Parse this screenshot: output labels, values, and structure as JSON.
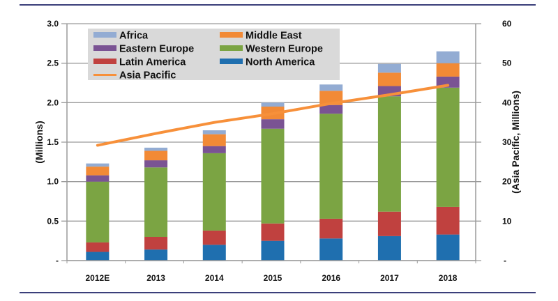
{
  "chart_data": {
    "type": "bar",
    "stacked": true,
    "title": "",
    "categories": [
      "2012E",
      "2013",
      "2014",
      "2015",
      "2016",
      "2017",
      "2018"
    ],
    "series": [
      {
        "name": "North America",
        "color": "#1f6faf",
        "axis": "left",
        "values": [
          0.11,
          0.14,
          0.2,
          0.25,
          0.28,
          0.31,
          0.33
        ]
      },
      {
        "name": "Latin America",
        "color": "#c0413f",
        "axis": "left",
        "values": [
          0.12,
          0.16,
          0.18,
          0.22,
          0.25,
          0.31,
          0.35
        ]
      },
      {
        "name": "Western Europe",
        "color": "#7ba443",
        "axis": "left",
        "values": [
          0.77,
          0.88,
          0.98,
          1.2,
          1.33,
          1.46,
          1.51
        ]
      },
      {
        "name": "Eastern Europe",
        "color": "#7a5393",
        "axis": "left",
        "values": [
          0.08,
          0.09,
          0.09,
          0.12,
          0.11,
          0.13,
          0.14
        ]
      },
      {
        "name": "Middle East",
        "color": "#f28a36",
        "axis": "left",
        "values": [
          0.11,
          0.12,
          0.15,
          0.16,
          0.18,
          0.17,
          0.17
        ]
      },
      {
        "name": "Africa",
        "color": "#93acd3",
        "axis": "left",
        "values": [
          0.04,
          0.04,
          0.05,
          0.05,
          0.08,
          0.11,
          0.15
        ]
      }
    ],
    "line_series": {
      "name": "Asia Pacific",
      "type": "line",
      "color": "#f7903a",
      "axis": "right",
      "values": [
        29.2,
        32.2,
        35.0,
        37.2,
        39.8,
        42.0,
        44.4
      ]
    },
    "xlabel": "",
    "ylabel": "(Millions)",
    "y2label": "(Asia Pacific, Millions)",
    "ylim": [
      0,
      3.0
    ],
    "y2lim": [
      0,
      60
    ],
    "yticks": [
      "-",
      "0.5",
      "1.0",
      "1.5",
      "2.0",
      "2.5",
      "3.0"
    ],
    "y2ticks": [
      "-",
      "10",
      "20",
      "30",
      "40",
      "50",
      "60"
    ],
    "grid": true,
    "legend": {
      "placement": "top-left inside",
      "entries": [
        {
          "name": "Africa",
          "color": "#93acd3",
          "kind": "bar"
        },
        {
          "name": "Middle East",
          "color": "#f28a36",
          "kind": "bar"
        },
        {
          "name": "Eastern Europe",
          "color": "#7a5393",
          "kind": "bar"
        },
        {
          "name": "Western Europe",
          "color": "#7ba443",
          "kind": "bar"
        },
        {
          "name": "Latin America",
          "color": "#c0413f",
          "kind": "bar"
        },
        {
          "name": "North America",
          "color": "#1f6faf",
          "kind": "bar"
        },
        {
          "name": "Asia Pacific",
          "color": "#f7903a",
          "kind": "line"
        }
      ]
    }
  },
  "colors": {
    "rule": "#3b3f7a",
    "grid": "#9a9a9a",
    "legend_bg": "#d9d9d9"
  }
}
